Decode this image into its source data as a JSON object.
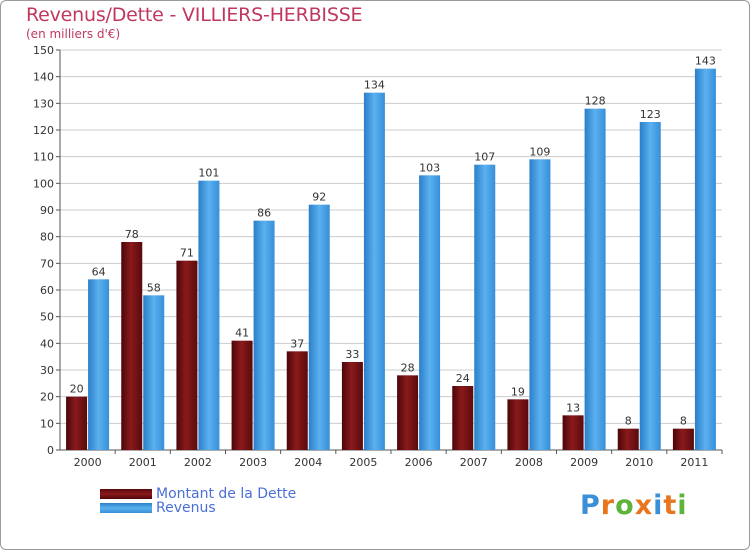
{
  "title": "Revenus/Dette - VILLIERS-HERBISSE",
  "subtitle": "(en milliers d'€)",
  "colors": {
    "dette": "#7a0f12",
    "revenus": "#3e9be0",
    "title": "#c0385e",
    "grid": "#cccccc"
  },
  "legend": {
    "dette_label": "Montant de la Dette",
    "revenus_label": "Revenus"
  },
  "logo": {
    "text": "Proxiti",
    "letter_colors": [
      "#3a8fd6",
      "#e8761e",
      "#5db33c",
      "#e8761e",
      "#3a8fd6",
      "#e8761e",
      "#5db33c"
    ]
  },
  "chart_data": {
    "type": "bar",
    "title": "Revenus/Dette - VILLIERS-HERBISSE",
    "ylabel": "(en milliers d'€)",
    "xlabel": "",
    "ylim": [
      0,
      150
    ],
    "yticks": [
      0,
      10,
      20,
      30,
      40,
      50,
      60,
      70,
      80,
      90,
      100,
      110,
      120,
      130,
      140,
      150
    ],
    "grid": true,
    "categories": [
      "2000",
      "2001",
      "2002",
      "2003",
      "2004",
      "2005",
      "2006",
      "2007",
      "2008",
      "2009",
      "2010",
      "2011"
    ],
    "series": [
      {
        "name": "Montant de la Dette",
        "values": [
          20,
          78,
          71,
          41,
          37,
          33,
          28,
          24,
          19,
          13,
          8,
          8
        ]
      },
      {
        "name": "Revenus",
        "values": [
          64,
          58,
          101,
          86,
          92,
          134,
          103,
          107,
          109,
          128,
          123,
          143
        ]
      }
    ],
    "legend_position": "bottom-left"
  }
}
